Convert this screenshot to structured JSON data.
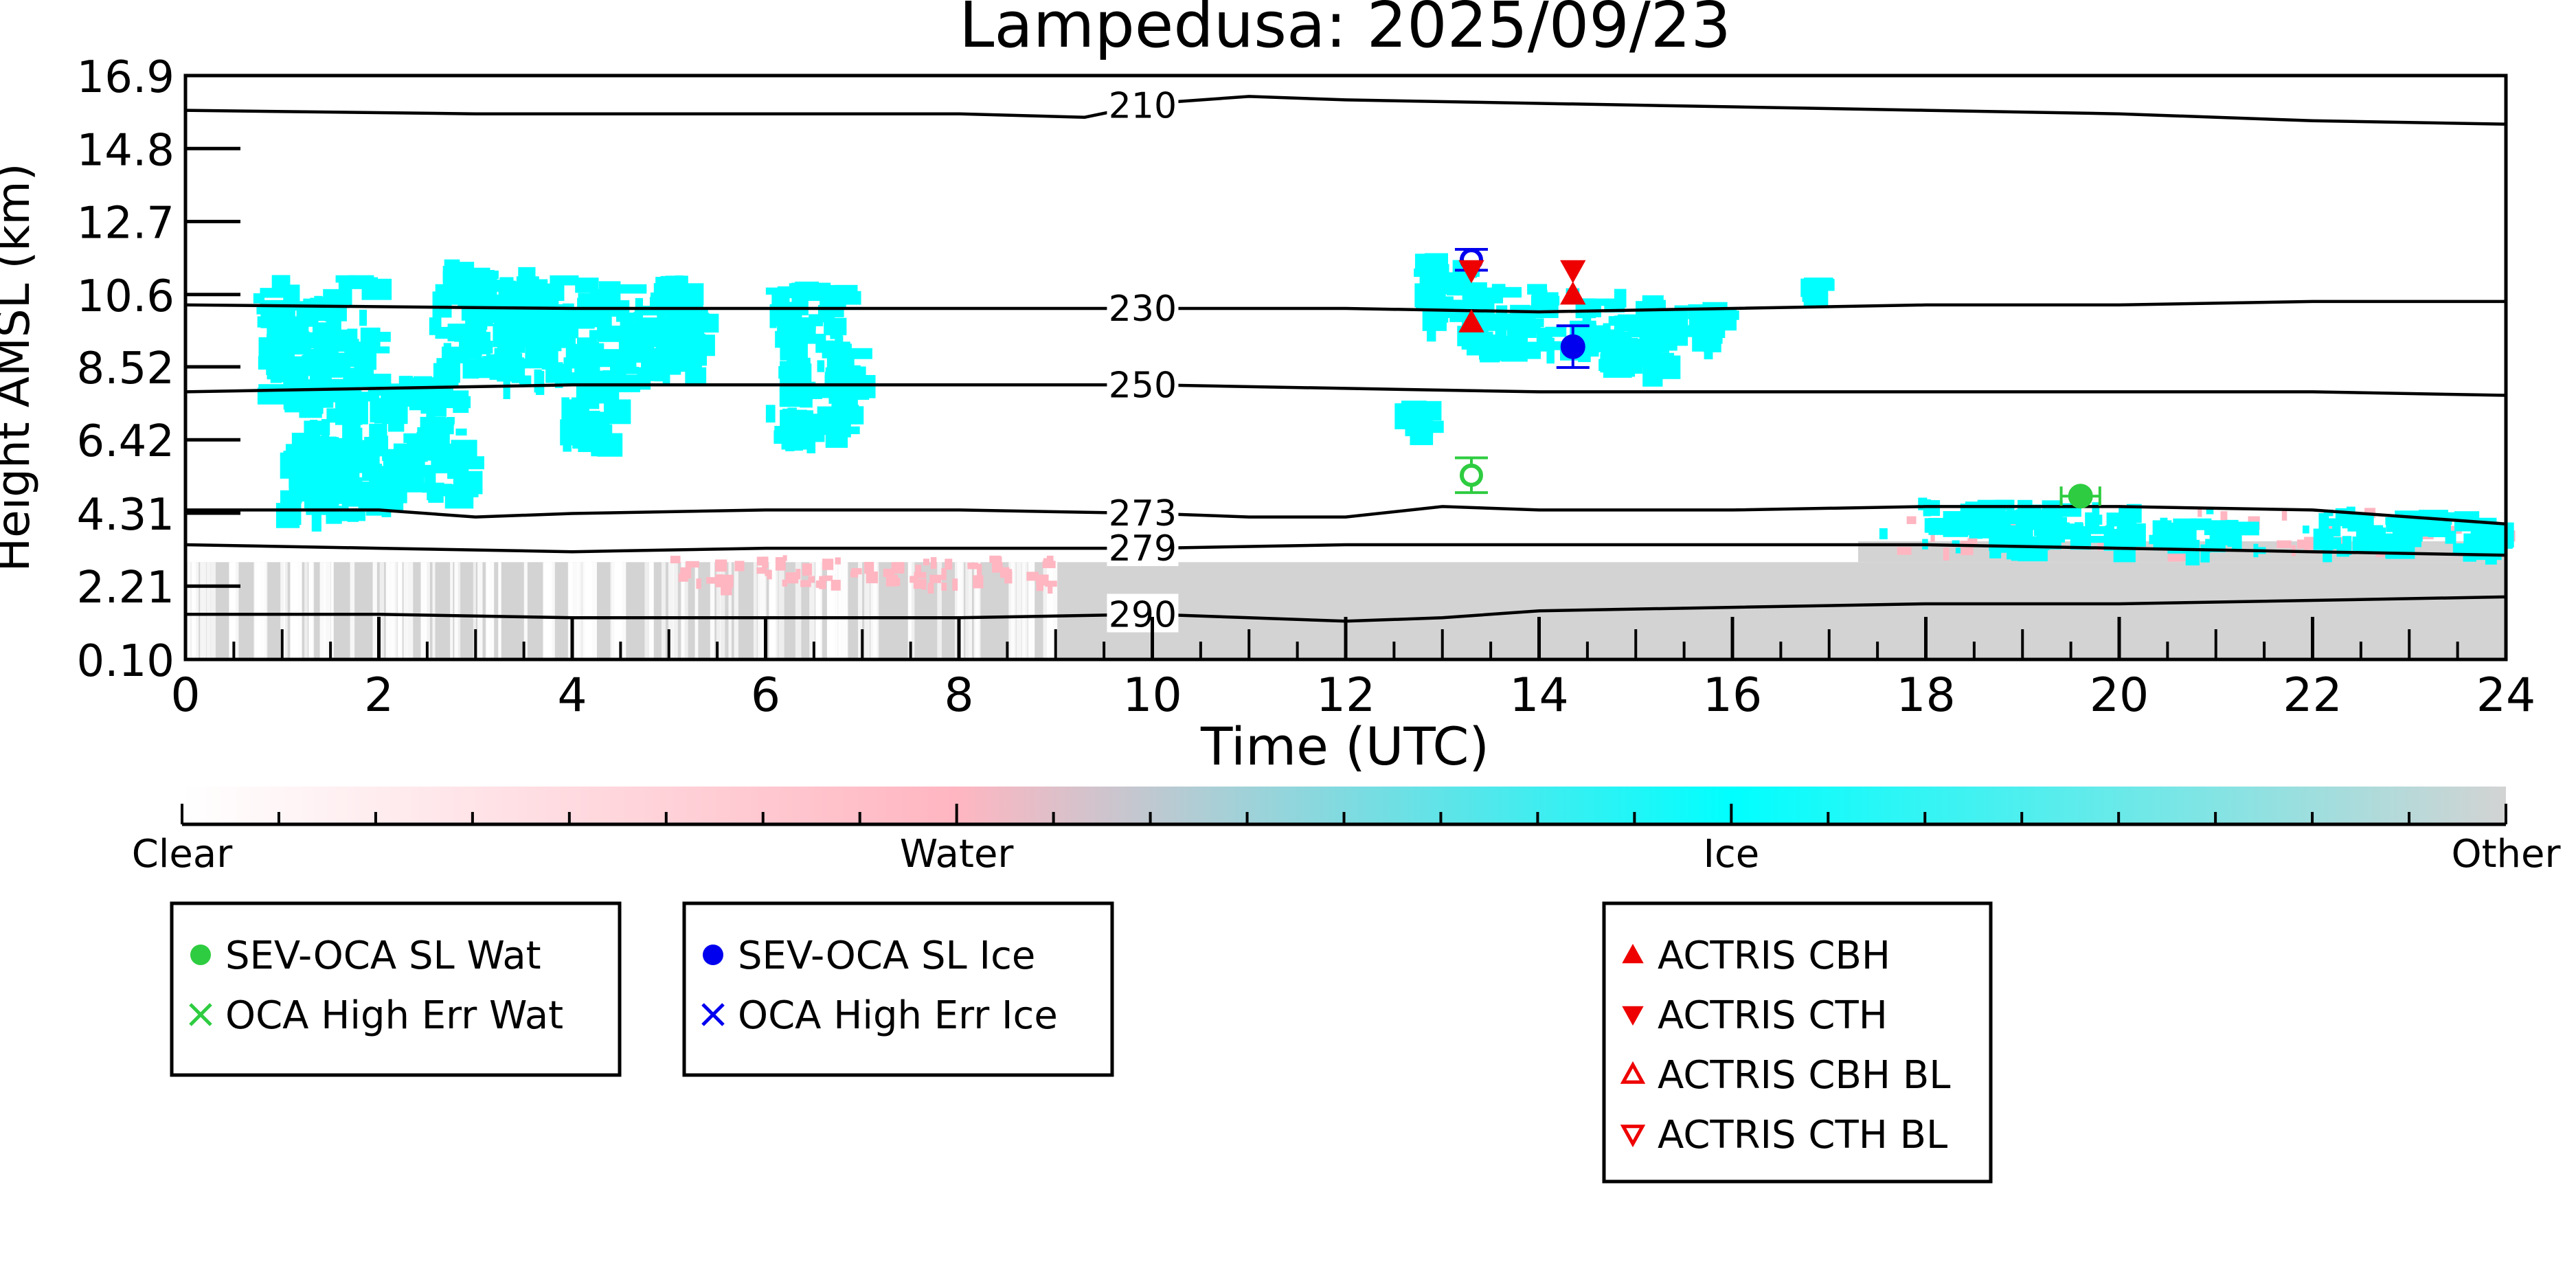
{
  "chart_data": {
    "type": "heatmap",
    "title": "Lampedusa: 2025/09/23",
    "xlabel": "Time (UTC)",
    "ylabel": "Height AMSL (km)",
    "xlim": [
      0,
      24
    ],
    "ylim": [
      0.1,
      16.9
    ],
    "x_ticks": [
      "0",
      "2",
      "4",
      "6",
      "8",
      "10",
      "12",
      "14",
      "16",
      "18",
      "20",
      "22",
      "24"
    ],
    "y_ticks": [
      "0.10",
      "2.21",
      "4.31",
      "6.42",
      "8.52",
      "10.6",
      "12.7",
      "14.8",
      "16.9"
    ],
    "colorbar": {
      "labels": [
        "Clear",
        "Water",
        "Ice",
        "Other"
      ],
      "colors": [
        "#ffffff",
        "#ffb6c1",
        "#00ffff",
        "#d3d3d3"
      ]
    },
    "isotherms": [
      {
        "label": "210",
        "points": [
          [
            0,
            15.9
          ],
          [
            3,
            15.8
          ],
          [
            6,
            15.8
          ],
          [
            8,
            15.8
          ],
          [
            9.3,
            15.7
          ],
          [
            10,
            16.1
          ],
          [
            11,
            16.3
          ],
          [
            12,
            16.2
          ],
          [
            14,
            16.1
          ],
          [
            16,
            16.0
          ],
          [
            18,
            15.9
          ],
          [
            20,
            15.8
          ],
          [
            22,
            15.6
          ],
          [
            24,
            15.5
          ]
        ]
      },
      {
        "label": "230",
        "points": [
          [
            0,
            10.3
          ],
          [
            4,
            10.2
          ],
          [
            8,
            10.2
          ],
          [
            10,
            10.2
          ],
          [
            12,
            10.2
          ],
          [
            14,
            10.1
          ],
          [
            16,
            10.2
          ],
          [
            18,
            10.3
          ],
          [
            20,
            10.3
          ],
          [
            22,
            10.4
          ],
          [
            24,
            10.4
          ]
        ]
      },
      {
        "label": "250",
        "points": [
          [
            0,
            7.8
          ],
          [
            2,
            7.9
          ],
          [
            4,
            8.0
          ],
          [
            6,
            8.0
          ],
          [
            8,
            8.0
          ],
          [
            10,
            8.0
          ],
          [
            12,
            7.9
          ],
          [
            14,
            7.8
          ],
          [
            16,
            7.8
          ],
          [
            18,
            7.8
          ],
          [
            20,
            7.8
          ],
          [
            22,
            7.8
          ],
          [
            24,
            7.7
          ]
        ]
      },
      {
        "label": "273",
        "points": [
          [
            0,
            4.4
          ],
          [
            2,
            4.4
          ],
          [
            3,
            4.2
          ],
          [
            4,
            4.3
          ],
          [
            6,
            4.4
          ],
          [
            8,
            4.4
          ],
          [
            10,
            4.3
          ],
          [
            11,
            4.2
          ],
          [
            12,
            4.2
          ],
          [
            13,
            4.5
          ],
          [
            14,
            4.4
          ],
          [
            16,
            4.4
          ],
          [
            18,
            4.5
          ],
          [
            20,
            4.5
          ],
          [
            22,
            4.4
          ],
          [
            24,
            4.0
          ]
        ]
      },
      {
        "label": "279",
        "points": [
          [
            0,
            3.4
          ],
          [
            2,
            3.3
          ],
          [
            4,
            3.2
          ],
          [
            6,
            3.3
          ],
          [
            8,
            3.3
          ],
          [
            10,
            3.3
          ],
          [
            12,
            3.4
          ],
          [
            14,
            3.4
          ],
          [
            16,
            3.4
          ],
          [
            18,
            3.4
          ],
          [
            20,
            3.3
          ],
          [
            22,
            3.2
          ],
          [
            24,
            3.1
          ]
        ]
      },
      {
        "label": "290",
        "points": [
          [
            0,
            1.4
          ],
          [
            2,
            1.4
          ],
          [
            4,
            1.3
          ],
          [
            6,
            1.3
          ],
          [
            8,
            1.3
          ],
          [
            10,
            1.4
          ],
          [
            11,
            1.3
          ],
          [
            12,
            1.2
          ],
          [
            13,
            1.3
          ],
          [
            14,
            1.5
          ],
          [
            16,
            1.6
          ],
          [
            18,
            1.7
          ],
          [
            20,
            1.7
          ],
          [
            22,
            1.8
          ],
          [
            24,
            1.9
          ]
        ]
      }
    ],
    "markers": [
      {
        "series": "SEV-OCA SL Wat",
        "x": 19.6,
        "y": 4.8,
        "xerr": [
          0.2,
          0.2
        ]
      },
      {
        "series": "SEV-OCA SL Wat (open)",
        "x": 13.3,
        "y": 5.4,
        "yerr": [
          0.5,
          0.5
        ]
      },
      {
        "series": "SEV-OCA SL Ice",
        "x": 14.35,
        "y": 9.1,
        "yerr": [
          0.6,
          0.6
        ]
      },
      {
        "series": "SEV-OCA SL Ice (open)",
        "x": 13.3,
        "y": 11.6,
        "yerr": [
          0.3,
          0.3
        ]
      },
      {
        "series": "ACTRIS CBH",
        "x": 13.3,
        "y": 9.8
      },
      {
        "series": "ACTRIS CBH",
        "x": 14.35,
        "y": 10.6
      },
      {
        "series": "ACTRIS CTH",
        "x": 14.35,
        "y": 11.3
      },
      {
        "series": "ACTRIS CTH",
        "x": 13.3,
        "y": 11.3
      }
    ],
    "legends": [
      [
        {
          "label": "SEV-OCA SL Wat",
          "symbol": "circle",
          "color": "#2ecc40"
        },
        {
          "label": "OCA High Err Wat",
          "symbol": "x",
          "color": "#2ecc40"
        }
      ],
      [
        {
          "label": "SEV-OCA SL Ice",
          "symbol": "circle",
          "color": "#0000ee"
        },
        {
          "label": "OCA High Err Ice",
          "symbol": "x",
          "color": "#0000ee"
        }
      ],
      [
        {
          "label": "ACTRIS CBH",
          "symbol": "triangle-up",
          "color": "#ee0000"
        },
        {
          "label": "ACTRIS CTH",
          "symbol": "triangle-down",
          "color": "#ee0000"
        },
        {
          "label": "ACTRIS CBH BL",
          "symbol": "triangle-up-open",
          "color": "#ee0000"
        },
        {
          "label": "ACTRIS CTH BL",
          "symbol": "triangle-down-open",
          "color": "#ee0000"
        }
      ]
    ]
  }
}
